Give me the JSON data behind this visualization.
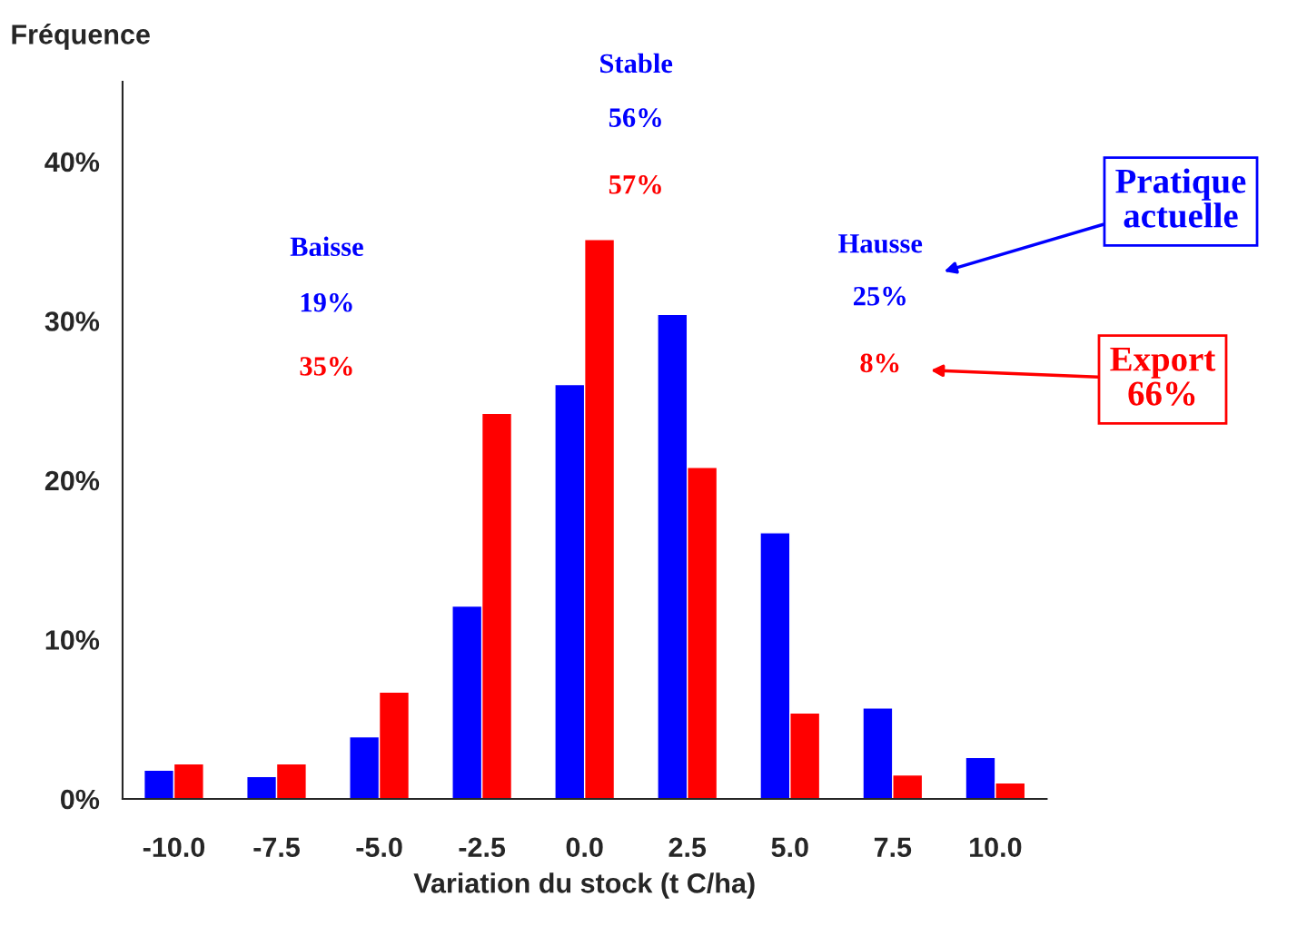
{
  "chart_data": {
    "type": "bar",
    "xlabel": "Variation du stock (t C/ha)",
    "ylabel": "Fréquence",
    "categories": [
      "-10.0",
      "-7.5",
      "-5.0",
      "-2.5",
      "0.0",
      "2.5",
      "5.0",
      "7.5",
      "10.0"
    ],
    "series": [
      {
        "name": "Pratique actuelle",
        "color": "#0000ff",
        "values": [
          1.8,
          1.4,
          3.9,
          12.1,
          26.0,
          30.4,
          16.7,
          5.7,
          2.6
        ]
      },
      {
        "name": "Export 66%",
        "color": "#ff0000",
        "values": [
          2.2,
          2.2,
          6.7,
          24.2,
          35.1,
          20.8,
          5.4,
          1.5,
          1.0
        ]
      }
    ],
    "ylim": [
      0,
      45
    ],
    "yticks": [
      {
        "value": 0,
        "label": "0%"
      },
      {
        "value": 10,
        "label": "10%"
      },
      {
        "value": 20,
        "label": "20%"
      },
      {
        "value": 30,
        "label": "30%"
      },
      {
        "value": 40,
        "label": "40%"
      }
    ],
    "annotations": [
      "Baisse",
      "19%",
      "35%",
      "Stable",
      "56%",
      "57%",
      "Hausse",
      "25%",
      "8%"
    ]
  }
}
